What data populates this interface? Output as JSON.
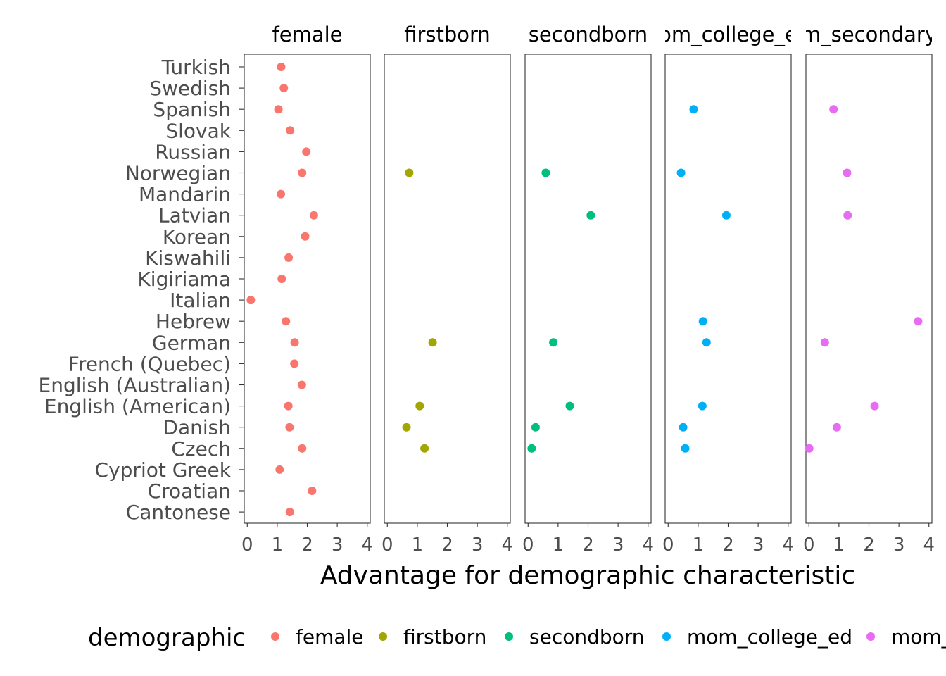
{
  "chart_data": {
    "type": "scatter",
    "xlabel": "Advantage for demographic characteristic",
    "ylabel": "",
    "xlim": [
      -0.1,
      4.1
    ],
    "x_ticks": [
      "0",
      "1",
      "2",
      "3",
      "4"
    ],
    "categories": [
      "Turkish",
      "Swedish",
      "Spanish",
      "Slovak",
      "Russian",
      "Norwegian",
      "Mandarin",
      "Latvian",
      "Korean",
      "Kiswahili",
      "Kigiriama",
      "Italian",
      "Hebrew",
      "German",
      "French (Quebec)",
      "English (Australian)",
      "English (American)",
      "Danish",
      "Czech",
      "Cypriot Greek",
      "Croatian",
      "Cantonese"
    ],
    "legend": {
      "title": "demographic",
      "position": "bottom"
    },
    "grid": false,
    "series": [
      {
        "name": "female",
        "color": "#F8766D",
        "panel_label": "female",
        "points": [
          {
            "language": "Turkish",
            "x": 1.13
          },
          {
            "language": "Swedish",
            "x": 1.22
          },
          {
            "language": "Spanish",
            "x": 1.04
          },
          {
            "language": "Slovak",
            "x": 1.43
          },
          {
            "language": "Russian",
            "x": 1.97
          },
          {
            "language": "Norwegian",
            "x": 1.83
          },
          {
            "language": "Mandarin",
            "x": 1.12
          },
          {
            "language": "Latvian",
            "x": 2.22
          },
          {
            "language": "Korean",
            "x": 1.93
          },
          {
            "language": "Kiswahili",
            "x": 1.38
          },
          {
            "language": "Kigiriama",
            "x": 1.15
          },
          {
            "language": "Italian",
            "x": 0.12
          },
          {
            "language": "Hebrew",
            "x": 1.29
          },
          {
            "language": "German",
            "x": 1.58
          },
          {
            "language": "French (Quebec)",
            "x": 1.57
          },
          {
            "language": "English (Australian)",
            "x": 1.82
          },
          {
            "language": "English (American)",
            "x": 1.37
          },
          {
            "language": "Danish",
            "x": 1.41
          },
          {
            "language": "Czech",
            "x": 1.83
          },
          {
            "language": "Cypriot Greek",
            "x": 1.08
          },
          {
            "language": "Croatian",
            "x": 2.16
          },
          {
            "language": "Cantonese",
            "x": 1.42
          }
        ]
      },
      {
        "name": "firstborn",
        "color": "#A3A500",
        "panel_label": "firstborn",
        "points": [
          {
            "language": "Norwegian",
            "x": 0.73
          },
          {
            "language": "German",
            "x": 1.51
          },
          {
            "language": "English (American)",
            "x": 1.08
          },
          {
            "language": "Danish",
            "x": 0.64
          },
          {
            "language": "Czech",
            "x": 1.24
          }
        ]
      },
      {
        "name": "secondborn",
        "color": "#00BF7D",
        "panel_label": "secondborn",
        "points": [
          {
            "language": "Norwegian",
            "x": 0.59
          },
          {
            "language": "Latvian",
            "x": 2.09
          },
          {
            "language": "German",
            "x": 0.84
          },
          {
            "language": "English (American)",
            "x": 1.39
          },
          {
            "language": "Danish",
            "x": 0.25
          },
          {
            "language": "Czech",
            "x": 0.12
          }
        ]
      },
      {
        "name": "mom_college_ed",
        "color": "#00B0F6",
        "panel_label": "om_college_e",
        "points": [
          {
            "language": "Spanish",
            "x": 0.85
          },
          {
            "language": "Norwegian",
            "x": 0.43
          },
          {
            "language": "Latvian",
            "x": 1.94
          },
          {
            "language": "Hebrew",
            "x": 1.16
          },
          {
            "language": "German",
            "x": 1.28
          },
          {
            "language": "English (American)",
            "x": 1.14
          },
          {
            "language": "Danish",
            "x": 0.5
          },
          {
            "language": "Czech",
            "x": 0.57
          }
        ]
      },
      {
        "name": "mom_",
        "color": "#E76BF3",
        "panel_label": "m_secondary",
        "points": [
          {
            "language": "Spanish",
            "x": 0.82
          },
          {
            "language": "Norwegian",
            "x": 1.27
          },
          {
            "language": "Latvian",
            "x": 1.29
          },
          {
            "language": "Hebrew",
            "x": 3.64
          },
          {
            "language": "German",
            "x": 0.53
          },
          {
            "language": "English (American)",
            "x": 2.19
          },
          {
            "language": "Danish",
            "x": 0.93
          },
          {
            "language": "Czech",
            "x": 0.01
          }
        ]
      }
    ]
  }
}
